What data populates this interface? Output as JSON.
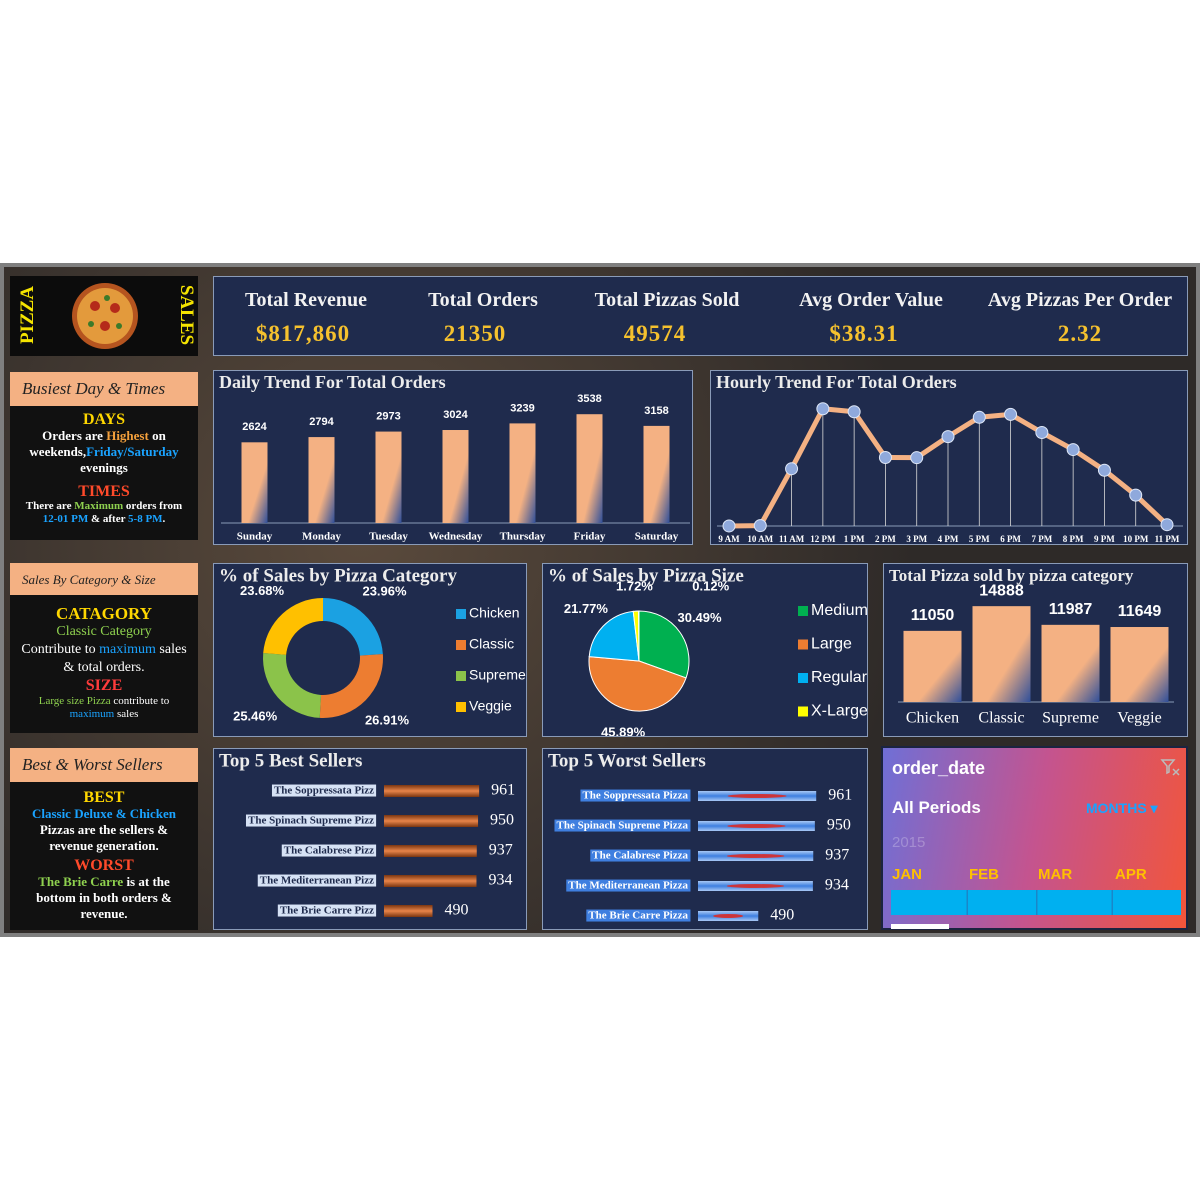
{
  "header": {
    "left": "PIZZA",
    "right": "SALES"
  },
  "kpis": [
    {
      "label": "Total Revenue",
      "value": "$817,860"
    },
    {
      "label": "Total Orders",
      "value": "21350"
    },
    {
      "label": "Total Pizzas Sold",
      "value": "49574"
    },
    {
      "label": "Avg Order Value",
      "value": "$38.31"
    },
    {
      "label": "Avg Pizzas Per Order",
      "value": "2.32"
    }
  ],
  "notes": {
    "busiest": {
      "title": "Busiest Day & Times",
      "days_heading": "DAYS",
      "days_text": [
        "Orders are ",
        "Highest",
        " on weekends,",
        "Friday/Saturday",
        " evenings"
      ],
      "times_heading": "TIMES",
      "times_text": [
        "There are ",
        "Maximum",
        " orders from ",
        "12-01 PM",
        " & after ",
        "5-8 PM",
        "."
      ]
    },
    "category_size": {
      "title": "Sales By Category & Size",
      "category_heading": "CATAGORY",
      "category_text": [
        "Classic Category",
        "Contribute to ",
        "maximum",
        " sales & total orders."
      ],
      "size_heading": "SIZE",
      "size_text": [
        "Large size Pizza",
        " contribute to ",
        "maximum",
        " sales"
      ]
    },
    "sellers": {
      "title": "Best & Worst Sellers",
      "best_heading": "BEST",
      "best_text": [
        "Classic Deluxe & Chicken",
        " Pizzas are the sellers & revenue generation."
      ],
      "worst_heading": "WORST",
      "worst_text": [
        "The Brie Carre",
        " is at the bottom in both orders & revenue."
      ]
    }
  },
  "chart_data": [
    {
      "type": "bar",
      "title": "Daily Trend For Total Orders",
      "categories": [
        "Sunday",
        "Monday",
        "Tuesday",
        "Wednesday",
        "Thursday",
        "Friday",
        "Saturday"
      ],
      "values": [
        2624,
        2794,
        2973,
        3024,
        3239,
        3538,
        3158
      ],
      "color": "#f4b183",
      "ylim": [
        0,
        4000
      ]
    },
    {
      "type": "line",
      "title": "Hourly Trend For Total Orders",
      "categories": [
        "9 AM",
        "10 AM",
        "11 AM",
        "12 PM",
        "1 PM",
        "2 PM",
        "3 PM",
        "4 PM",
        "5 PM",
        "6 PM",
        "7 PM",
        "8 PM",
        "9 PM",
        "10 PM",
        "11 PM"
      ],
      "values": [
        1,
        8,
        1231,
        2520,
        2455,
        1472,
        1468,
        1920,
        2336,
        2399,
        2009,
        1642,
        1198,
        663,
        28
      ],
      "color": "#f4b183",
      "marker_color": "#8fa9dc",
      "ylim": [
        0,
        2600
      ]
    },
    {
      "type": "donut",
      "title": "% of Sales by Pizza Category",
      "categories": [
        "Chicken",
        "Classic",
        "Supreme",
        "Veggie"
      ],
      "values": [
        23.96,
        26.91,
        25.46,
        23.68
      ],
      "value_labels": [
        "23.96%",
        "26.91%",
        "25.46%",
        "23.68%"
      ],
      "colors": [
        "#1ba1e2",
        "#ed7d31",
        "#8bc34a",
        "#ffc000"
      ]
    },
    {
      "type": "pie",
      "title": "% of Sales by Pizza Size",
      "categories": [
        "Medium",
        "Large",
        "Regular",
        "X-Large",
        null
      ],
      "values": [
        30.49,
        45.89,
        21.77,
        1.72,
        0.12
      ],
      "value_labels": [
        "30.49%",
        "45.89%",
        "21.77%",
        "1.72%",
        "0.12%"
      ],
      "colors": [
        "#00b050",
        "#ed7d31",
        "#00b0f0",
        "#ffff00",
        "#7f7f7f"
      ]
    },
    {
      "type": "bar",
      "title": "Total Pizza sold by pizza category",
      "categories": [
        "Chicken",
        "Classic",
        "Supreme",
        "Veggie"
      ],
      "values": [
        11050,
        14888,
        11987,
        11649
      ],
      "color": "#f4b183",
      "ylim": [
        0,
        16000
      ]
    },
    {
      "type": "barh",
      "title": "Top 5 Best Sellers",
      "categories": [
        "The Soppressata Pizz",
        "The Spinach Supreme Pizz",
        "The Calabrese Pizz",
        "The Mediterranean Pizz",
        "The Brie Carre Pizz"
      ],
      "values": [
        961,
        950,
        937,
        934,
        490
      ],
      "color": "#e8854a",
      "xlim": [
        0,
        1000
      ]
    },
    {
      "type": "barh",
      "title": "Top 5 Worst Sellers",
      "categories": [
        "The Soppressata Pizza",
        "The Spinach Supreme Pizza",
        "The Calabrese Pizza",
        "The Mediterranean Pizza",
        "The Brie Carre Pizza"
      ],
      "values": [
        961,
        950,
        937,
        934,
        490
      ],
      "color": "#3e7fe0",
      "accent_color": "#e3261c",
      "xlim": [
        0,
        1000
      ]
    }
  ],
  "slicer": {
    "title": "order_date",
    "period": "All Periods",
    "level": "MONTHS",
    "year": "2015",
    "months": [
      "JAN",
      "FEB",
      "MAR",
      "APR"
    ]
  }
}
